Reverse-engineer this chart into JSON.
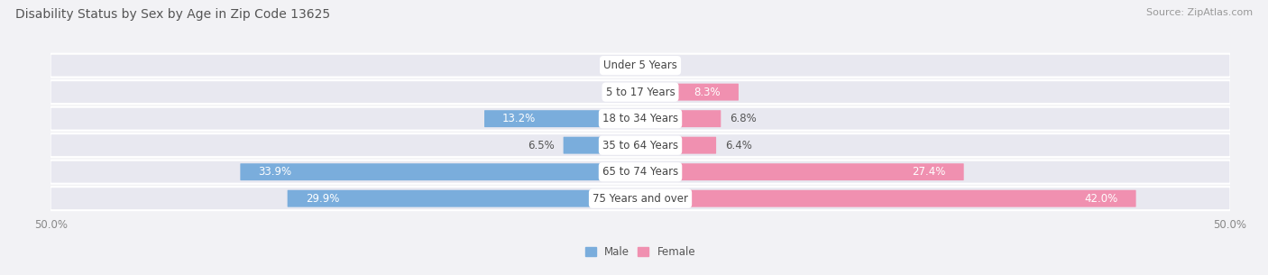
{
  "title": "Disability Status by Sex by Age in Zip Code 13625",
  "source": "Source: ZipAtlas.com",
  "categories": [
    "Under 5 Years",
    "5 to 17 Years",
    "18 to 34 Years",
    "35 to 64 Years",
    "65 to 74 Years",
    "75 Years and over"
  ],
  "male_values": [
    0.0,
    0.0,
    13.2,
    6.5,
    33.9,
    29.9
  ],
  "female_values": [
    0.0,
    8.3,
    6.8,
    6.4,
    27.4,
    42.0
  ],
  "male_color": "#7aaddc",
  "female_color": "#f090b0",
  "male_label": "Male",
  "female_label": "Female",
  "xlim": 50.0,
  "bg_color": "#f2f2f5",
  "row_color": "#e8e8f0",
  "title_fontsize": 10,
  "source_fontsize": 8,
  "label_fontsize": 8.5,
  "tick_fontsize": 8.5,
  "category_fontsize": 8.5,
  "bar_height": 0.58,
  "row_sep_color": "#ffffff",
  "label_dark": "#555555",
  "label_white": "#ffffff",
  "inside_threshold": 8.0
}
